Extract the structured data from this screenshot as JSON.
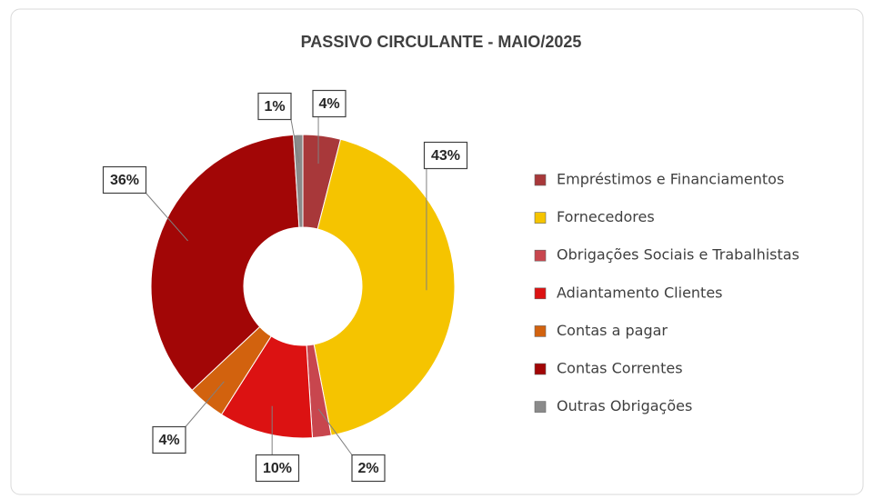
{
  "chart_data": {
    "type": "donut",
    "title": "PASSIVO  CIRCULANTE - MAIO/2025",
    "categories": [
      "Empréstimos e Financiamentos",
      "Fornecedores",
      "Obrigações Sociais e Trabalhistas",
      "Adiantamento Clientes",
      "Contas a pagar",
      "Contas Correntes",
      "Outras Obrigações"
    ],
    "values": [
      4,
      43,
      2,
      10,
      4,
      36,
      1
    ],
    "value_labels": [
      "4%",
      "43%",
      "2%",
      "10%",
      "4%",
      "36%",
      "1%"
    ],
    "colors": [
      "#a8383a",
      "#f5c400",
      "#c8464e",
      "#dc1212",
      "#d2620e",
      "#a20606",
      "#8a8a8a"
    ],
    "legend": "right"
  }
}
